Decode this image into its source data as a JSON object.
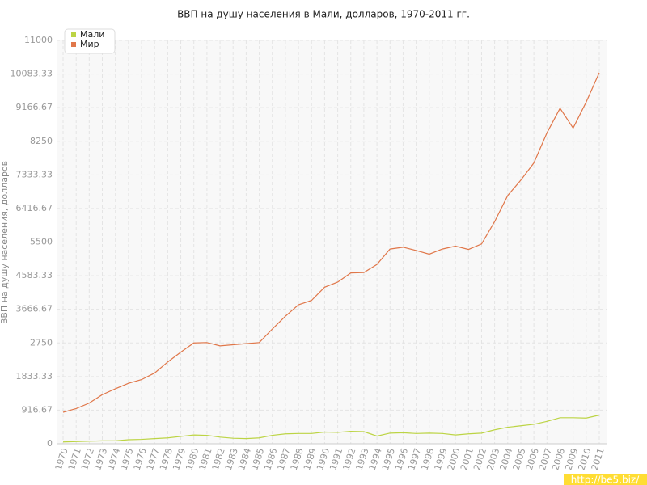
{
  "chart_data": {
    "type": "line",
    "title": "ВВП на душу населения в Мали, долларов, 1970-2011 гг.",
    "y_label": "ВВП на душу населения, долларов",
    "watermark": "http://be5.biz/",
    "categories": [
      "1970",
      "1971",
      "1972",
      "1973",
      "1974",
      "1975",
      "1976",
      "1977",
      "1978",
      "1979",
      "1980",
      "1981",
      "1982",
      "1983",
      "1984",
      "1985",
      "1986",
      "1987",
      "1988",
      "1989",
      "1990",
      "1991",
      "1992",
      "1993",
      "1994",
      "1995",
      "1996",
      "1997",
      "1998",
      "1999",
      "2000",
      "2001",
      "2002",
      "2003",
      "2004",
      "2005",
      "2006",
      "2007",
      "2008",
      "2009",
      "2010",
      "2011"
    ],
    "series": [
      {
        "name": "Мали",
        "color": "#bcd444",
        "values": [
          50,
          60,
          70,
          80,
          80,
          110,
          120,
          140,
          160,
          200,
          240,
          230,
          180,
          150,
          140,
          160,
          230,
          270,
          280,
          280,
          320,
          310,
          340,
          330,
          210,
          290,
          300,
          280,
          290,
          280,
          240,
          270,
          290,
          380,
          450,
          490,
          530,
          610,
          710,
          710,
          700,
          780
        ]
      },
      {
        "name": "Мир",
        "color": "#e0774a",
        "values": [
          860,
          960,
          1110,
          1340,
          1500,
          1650,
          1750,
          1930,
          2230,
          2500,
          2750,
          2760,
          2670,
          2700,
          2730,
          2760,
          3130,
          3480,
          3790,
          3910,
          4270,
          4410,
          4660,
          4670,
          4890,
          5310,
          5360,
          5270,
          5170,
          5310,
          5390,
          5300,
          5450,
          6060,
          6770,
          7190,
          7660,
          8480,
          9150,
          8610,
          9320,
          10120
        ]
      }
    ],
    "ylim": [
      0,
      11000
    ],
    "yticks": [
      0,
      916.67,
      1833.33,
      2750,
      3666.67,
      4583.33,
      5500,
      6416.67,
      7333.33,
      8250,
      9166.67,
      10083.33,
      11000
    ],
    "grid": true
  }
}
